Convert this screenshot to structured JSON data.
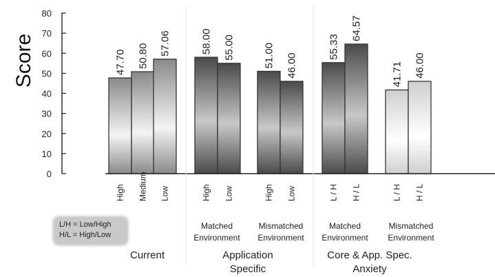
{
  "chart_data": {
    "type": "bar",
    "ylabel": "Score",
    "xlabel": "",
    "title": "",
    "ylim": [
      0,
      80
    ],
    "yticks": [
      0,
      10,
      20,
      30,
      40,
      50,
      60,
      70,
      80
    ],
    "grid": false,
    "bars": [
      {
        "label": "High",
        "value": 47.7,
        "value_label": "47.70",
        "style": "mid"
      },
      {
        "label": "Medium",
        "value": 50.8,
        "value_label": "50.80",
        "style": "mid"
      },
      {
        "label": "Low",
        "value": 57.06,
        "value_label": "57.06",
        "style": "mid"
      },
      {
        "label": "High",
        "value": 58.0,
        "value_label": "58.00",
        "style": "dark"
      },
      {
        "label": "Low",
        "value": 55.0,
        "value_label": "55.00",
        "style": "dark"
      },
      {
        "label": "High",
        "value": 51.0,
        "value_label": "51.00",
        "style": "dark"
      },
      {
        "label": "Low",
        "value": 46.0,
        "value_label": "46.00",
        "style": "dark"
      },
      {
        "label": "L / H",
        "value": 55.33,
        "value_label": "55.33",
        "style": "dark"
      },
      {
        "label": "H / L",
        "value": 64.57,
        "value_label": "64.57",
        "style": "dark"
      },
      {
        "label": "L / H",
        "value": 41.71,
        "value_label": "41.71",
        "style": "light"
      },
      {
        "label": "H / L",
        "value": 46.0,
        "value_label": "46.00",
        "style": "light"
      }
    ],
    "subgroups": [
      {
        "lines": [
          "Matched",
          "Environment"
        ]
      },
      {
        "lines": [
          "Mismatched",
          "Environment"
        ]
      },
      {
        "lines": [
          "Matched",
          "Environment"
        ]
      },
      {
        "lines": [
          "Mismatched",
          "Environment"
        ]
      }
    ],
    "groups": [
      {
        "lines": [
          "Current"
        ]
      },
      {
        "lines": [
          "Application",
          "Specific"
        ]
      },
      {
        "lines": [
          "Core & App. Spec.",
          "Anxiety"
        ]
      }
    ],
    "legend": {
      "lines": [
        "L/H = Low/High",
        "H/L = High/Low"
      ]
    },
    "colors": {
      "dark": "#4a4a4a",
      "mid": "#8a8a8a",
      "light": "#cfcfcf",
      "highlight": "#f4f4f4"
    }
  }
}
